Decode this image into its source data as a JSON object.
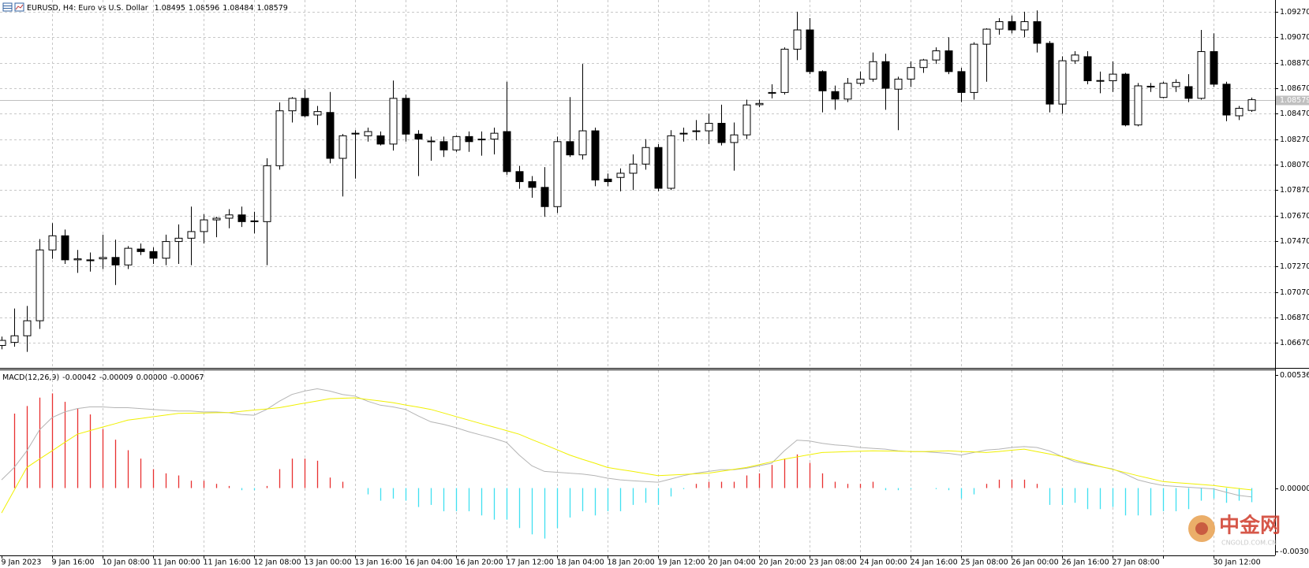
{
  "chart_data": {
    "type": "candlestick",
    "title": "EURUSD, H4:  Euro vs U.S. Dollar",
    "up_color": "#ffffff",
    "down_color": "#000000",
    "outline_color": "#000000",
    "grid": true,
    "ylim": [
      1.0648,
      1.09362
    ],
    "yticks": [
      {
        "value": 1.0927,
        "label": "1.09270"
      },
      {
        "value": 1.0907,
        "label": "1.09070"
      },
      {
        "value": 1.0887,
        "label": "1.08870"
      },
      {
        "value": 1.0867,
        "label": "1.08670"
      },
      {
        "value": 1.0847,
        "label": "1.08470"
      },
      {
        "value": 1.0827,
        "label": "1.08270"
      },
      {
        "value": 1.0807,
        "label": "1.08070"
      },
      {
        "value": 1.0787,
        "label": "1.07870"
      },
      {
        "value": 1.0767,
        "label": "1.07670"
      },
      {
        "value": 1.0747,
        "label": "1.07470"
      },
      {
        "value": 1.0727,
        "label": "1.07270"
      },
      {
        "value": 1.0707,
        "label": "1.07070"
      },
      {
        "value": 1.0687,
        "label": "1.06870"
      },
      {
        "value": 1.0667,
        "label": "1.06670"
      }
    ],
    "xticks": [
      "9 Jan 2023",
      "9 Jan 16:00",
      "10 Jan 08:00",
      "11 Jan 00:00",
      "11 Jan 16:00",
      "12 Jan 08:00",
      "13 Jan 00:00",
      "13 Jan 16:00",
      "16 Jan 04:00",
      "16 Jan 20:00",
      "17 Jan 12:00",
      "18 Jan 04:00",
      "18 Jan 20:00",
      "19 Jan 12:00",
      "20 Jan 04:00",
      "20 Jan 20:00",
      "23 Jan 08:00",
      "24 Jan 00:00",
      "24 Jan 16:00",
      "25 Jan 08:00",
      "26 Jan 00:00",
      "26 Jan 16:00",
      "27 Jan 08:00",
      null,
      "30 Jan 12:00"
    ],
    "open": [
      1.0665,
      1.06674,
      1.06726,
      1.06844,
      1.074,
      1.07511,
      1.07322,
      1.07322,
      1.0733,
      1.07341,
      1.07282,
      1.07407,
      1.07387,
      1.07335,
      1.07466,
      1.07492,
      1.07544,
      1.07636,
      1.07649,
      1.07675,
      1.07622,
      1.07622,
      1.08061,
      1.08492,
      1.0859,
      1.08459,
      1.08479,
      1.08119,
      1.0831,
      1.08296,
      1.08296,
      1.08231,
      1.0859,
      1.08309,
      1.08255,
      1.0825,
      1.08185,
      1.0829,
      1.08265,
      1.0827,
      1.08329,
      1.08015,
      1.07936,
      1.07891,
      1.0774,
      1.0825,
      1.08146,
      1.08335,
      1.07956,
      1.07969,
      1.08002,
      1.08074,
      1.08204,
      1.07884,
      1.0831,
      1.0833,
      1.08335,
      1.08394,
      1.08243,
      1.08303,
      1.0854,
      1.0863,
      1.08636,
      1.08976,
      1.09127,
      1.088,
      1.08643,
      1.08584,
      1.08708,
      1.08741,
      1.08878,
      1.08662,
      1.08741,
      1.08832,
      1.08891,
      1.08963,
      1.088,
      1.08636,
      1.09015,
      1.09133,
      1.09192,
      1.09127,
      1.09192,
      1.09022,
      1.08545,
      1.08885,
      1.08917,
      1.08725,
      1.08728,
      1.0878,
      1.08381,
      1.0868,
      1.08597,
      1.08682,
      1.08682,
      1.0859,
      1.08957,
      1.08701,
      1.08453,
      1.08495
    ],
    "high": [
      1.0672,
      1.0694,
      1.0696,
      1.07485,
      1.0761,
      1.0756,
      1.074,
      1.0738,
      1.0752,
      1.0748,
      1.0743,
      1.0745,
      1.0742,
      1.0752,
      1.076,
      1.0774,
      1.0768,
      1.0766,
      1.0772,
      1.0774,
      1.077,
      1.0812,
      1.08558,
      1.086,
      1.0866,
      1.0853,
      1.0864,
      1.0831,
      1.0834,
      1.0836,
      1.0833,
      1.0873,
      1.0862,
      1.0834,
      1.0829,
      1.0829,
      1.083,
      1.0833,
      1.0833,
      1.0836,
      1.0872,
      1.0806,
      1.0798,
      1.0805,
      1.0829,
      1.086,
      1.0886,
      1.0836,
      1.08,
      1.0804,
      1.0815,
      1.0827,
      1.0823,
      1.0834,
      1.0836,
      1.0842,
      1.0847,
      1.0854,
      1.084,
      1.0858,
      1.0858,
      1.087,
      1.0899,
      1.0927,
      1.0922,
      1.0881,
      1.0869,
      1.0875,
      1.088,
      1.0895,
      1.0894,
      1.0876,
      1.0888,
      1.089,
      1.0899,
      1.0907,
      1.0883,
      1.0903,
      1.0914,
      1.0922,
      1.0924,
      1.0927,
      1.0928,
      1.0904,
      1.0892,
      1.0896,
      1.0896,
      1.088,
      1.0888,
      1.0879,
      1.0871,
      1.0871,
      1.0872,
      1.0874,
      1.0878,
      1.09127,
      1.091,
      1.0872,
      1.0853,
      1.08596
    ],
    "low": [
      1.0662,
      1.0664,
      1.066,
      1.0678,
      1.0733,
      1.0729,
      1.0722,
      1.0723,
      1.0725,
      1.07125,
      1.0725,
      1.0736,
      1.0729,
      1.0728,
      1.0729,
      1.0728,
      1.0745,
      1.075,
      1.0757,
      1.0758,
      1.0753,
      1.0728,
      1.0803,
      1.084,
      1.0844,
      1.0838,
      1.0808,
      1.0782,
      1.0796,
      1.0825,
      1.0822,
      1.0818,
      1.0825,
      1.0798,
      1.081,
      1.0813,
      1.0817,
      1.0817,
      1.0814,
      1.0815,
      1.0799,
      1.0788,
      1.0781,
      1.0766,
      1.0769,
      1.0813,
      1.0811,
      1.079,
      1.079,
      1.0786,
      1.0787,
      1.0803,
      1.0786,
      1.0787,
      1.0825,
      1.0826,
      1.0823,
      1.0822,
      1.08022,
      1.0827,
      1.0852,
      1.0859,
      1.0862,
      1.0889,
      1.0878,
      1.0848,
      1.085,
      1.0856,
      1.0869,
      1.0872,
      1.085,
      1.0834,
      1.0868,
      1.0879,
      1.0886,
      1.0878,
      1.0856,
      1.0858,
      1.0872,
      1.0909,
      1.091,
      1.0907,
      1.0895,
      1.0848,
      1.0847,
      1.0886,
      1.087,
      1.0863,
      1.0864,
      1.0837,
      1.0837,
      1.0864,
      1.0859,
      1.0864,
      1.0856,
      1.0858,
      1.0868,
      1.0841,
      1.0842,
      1.08484
    ],
    "close": [
      1.0669,
      1.06726,
      1.06844,
      1.074,
      1.07511,
      1.07322,
      1.0733,
      1.07315,
      1.07341,
      1.07282,
      1.07413,
      1.07387,
      1.07335,
      1.07466,
      1.07492,
      1.07544,
      1.07636,
      1.07649,
      1.07675,
      1.07622,
      1.07628,
      1.08061,
      1.08492,
      1.0859,
      1.08453,
      1.08486,
      1.08119,
      1.08296,
      1.08316,
      1.08329,
      1.08231,
      1.0859,
      1.08309,
      1.0827,
      1.0825,
      1.08185,
      1.0829,
      1.0825,
      1.0827,
      1.08316,
      1.08015,
      1.07936,
      1.07891,
      1.0774,
      1.0825,
      1.08146,
      1.08335,
      1.07949,
      1.07936,
      1.08002,
      1.08074,
      1.08204,
      1.07884,
      1.08296,
      1.08316,
      1.08335,
      1.08394,
      1.08243,
      1.08303,
      1.08538,
      1.0855,
      1.08636,
      1.08976,
      1.09127,
      1.088,
      1.08649,
      1.08584,
      1.08708,
      1.08741,
      1.08878,
      1.08669,
      1.08741,
      1.08832,
      1.08891,
      1.08963,
      1.088,
      1.08636,
      1.09015,
      1.09133,
      1.09192,
      1.09127,
      1.09192,
      1.09022,
      1.08545,
      1.08885,
      1.0893,
      1.08728,
      1.0873,
      1.0878,
      1.08381,
      1.08688,
      1.08685,
      1.08708,
      1.08715,
      1.0859,
      1.08957,
      1.08701,
      1.08459,
      1.08512,
      1.08579
    ],
    "current_price_color": "#c0c0c0",
    "indicator": {
      "title": "MACD(12,26,9)",
      "extra_readout": {
        "value": 0,
        "label": "0.00000"
      },
      "ylim": [
        -0.0032,
        0.0056
      ],
      "yticks": [
        0.00536,
        {
          "value": 0,
          "label": "0.00000"
        },
        {
          "value": -0.003,
          "label": "-0.00300"
        }
      ],
      "histogram": {
        "up_color": "#e83030",
        "down_color": "#40e0f0",
        "values": [
          null,
          0.00354,
          0.0039,
          0.0043,
          0.0045,
          0.0041,
          0.0038,
          0.0035,
          0.0028,
          0.0023,
          0.0018,
          0.0014,
          0.0009,
          0.0007,
          0.0006,
          0.00035,
          0.00035,
          0.0002,
          0.0001,
          -0.0001,
          -0.0001,
          0.0001,
          0.0009,
          0.0014,
          0.0014,
          0.0013,
          0.0005,
          0.0003,
          0,
          -0.0003,
          -0.0006,
          -0.0005,
          -0.0006,
          -0.0009,
          -0.0008,
          -0.0011,
          -0.0011,
          -0.0011,
          -0.0013,
          -0.0015,
          -0.0015,
          -0.0019,
          -0.0022,
          -0.0024,
          -0.0019,
          -0.0014,
          -0.0011,
          -0.0013,
          -0.0011,
          -0.0011,
          -0.0008,
          -0.0007,
          -0.0008,
          -0.0004,
          -5e-05,
          0.0002,
          0.0003,
          0.0003,
          0.0003,
          0.0006,
          0.0007,
          0.0011,
          0.0014,
          0.0016,
          0.0012,
          0.0007,
          0.0003,
          0.0002,
          0.0002,
          0.0003,
          -0.0001,
          -0.0001,
          -5e-05,
          0,
          -5e-05,
          -0.0001,
          -0.0005,
          -0.0003,
          0.0002,
          0.0004,
          0.0004,
          0.0004,
          0.0002,
          -0.0008,
          -0.0008,
          -0.0007,
          -0.001,
          -0.001,
          -0.0009,
          -0.0013,
          -0.0013,
          -0.0013,
          -0.0011,
          -0.0011,
          -0.001,
          -0.0006,
          -0.0005,
          -0.0007,
          -0.0006,
          -0.00067
        ]
      },
      "series": [
        {
          "color": "#b4b4b4",
          "values": [
            0.00039,
            0.00098,
            0.00177,
            0.00276,
            0.00335,
            0.00362,
            0.00378,
            0.00386,
            0.00386,
            0.00382,
            0.00382,
            0.00378,
            0.00374,
            0.0037,
            0.00366,
            0.00366,
            0.00362,
            0.00362,
            0.00358,
            0.0035,
            0.00346,
            0.00374,
            0.00413,
            0.00445,
            0.00461,
            0.00472,
            0.00461,
            0.00445,
            0.00437,
            0.00413,
            0.00394,
            0.00386,
            0.00374,
            0.00343,
            0.00315,
            0.00303,
            0.00287,
            0.00268,
            0.00252,
            0.00236,
            0.00217,
            0.00157,
            0.00106,
            0.00079,
            0.00075,
            0.00071,
            0.00067,
            0.00059,
            0.00047,
            0.00039,
            0.00035,
            0.00031,
            0.00028,
            0.00043,
            0.00059,
            0.00071,
            0.00079,
            0.00087,
            0.00087,
            0.00094,
            0.00106,
            0.00118,
            0.00177,
            0.00228,
            0.00224,
            0.00213,
            0.00205,
            0.00201,
            0.00193,
            0.00189,
            0.00185,
            0.00177,
            0.00173,
            0.00173,
            0.00169,
            0.00165,
            0.00157,
            0.00169,
            0.00181,
            0.00185,
            0.00193,
            0.00197,
            0.00193,
            0.00177,
            0.0015,
            0.00126,
            0.00114,
            0.00102,
            0.00091,
            0.00067,
            0.00039,
            0.00024,
            0.00012,
            8e-05,
            4e-05,
            0,
            -4e-05,
            -0.0002,
            -0.00035,
            -0.00042
          ]
        },
        {
          "color": "#f0f000",
          "values": [
            -0.00118,
            -0.0001,
            0.00098,
            0.00138,
            0.00177,
            0.00217,
            0.00256,
            0.00273,
            0.0029,
            0.00306,
            0.00323,
            0.00331,
            0.00339,
            0.00347,
            0.00355,
            0.00356,
            0.00357,
            0.00358,
            0.00359,
            0.00365,
            0.00371,
            0.00376,
            0.00382,
            0.00393,
            0.00404,
            0.00414,
            0.00425,
            0.00427,
            0.00429,
            0.00421,
            0.00414,
            0.00406,
            0.00395,
            0.00385,
            0.00374,
            0.00357,
            0.0034,
            0.00323,
            0.00306,
            0.0029,
            0.00273,
            0.00256,
            0.00231,
            0.00207,
            0.00182,
            0.00157,
            0.00137,
            0.00118,
            0.00098,
            0.00088,
            0.00079,
            0.00069,
            0.00059,
            0.00062,
            0.00065,
            0.00068,
            0.00071,
            0.0008,
            0.00089,
            0.00098,
            0.00111,
            0.00125,
            0.00138,
            0.00148,
            0.00159,
            0.00169,
            0.00171,
            0.00173,
            0.00175,
            0.00177,
            0.00176,
            0.00175,
            0.00174,
            0.00173,
            0.00175,
            0.00177,
            0.00174,
            0.00172,
            0.00169,
            0.00174,
            0.0018,
            0.00185,
            0.00173,
            0.00162,
            0.0015,
            0.00134,
            0.00118,
            0.00103,
            0.00089,
            0.00074,
            0.00059,
            0.00045,
            0.00031,
            0.00026,
            0.00022,
            0.00017,
            0.00012,
            5e-05,
            -2e-05,
            -9e-05
          ]
        }
      ]
    },
    "watermark": {
      "name": "中金网",
      "site": "CNGOLD.COM.CN"
    }
  }
}
